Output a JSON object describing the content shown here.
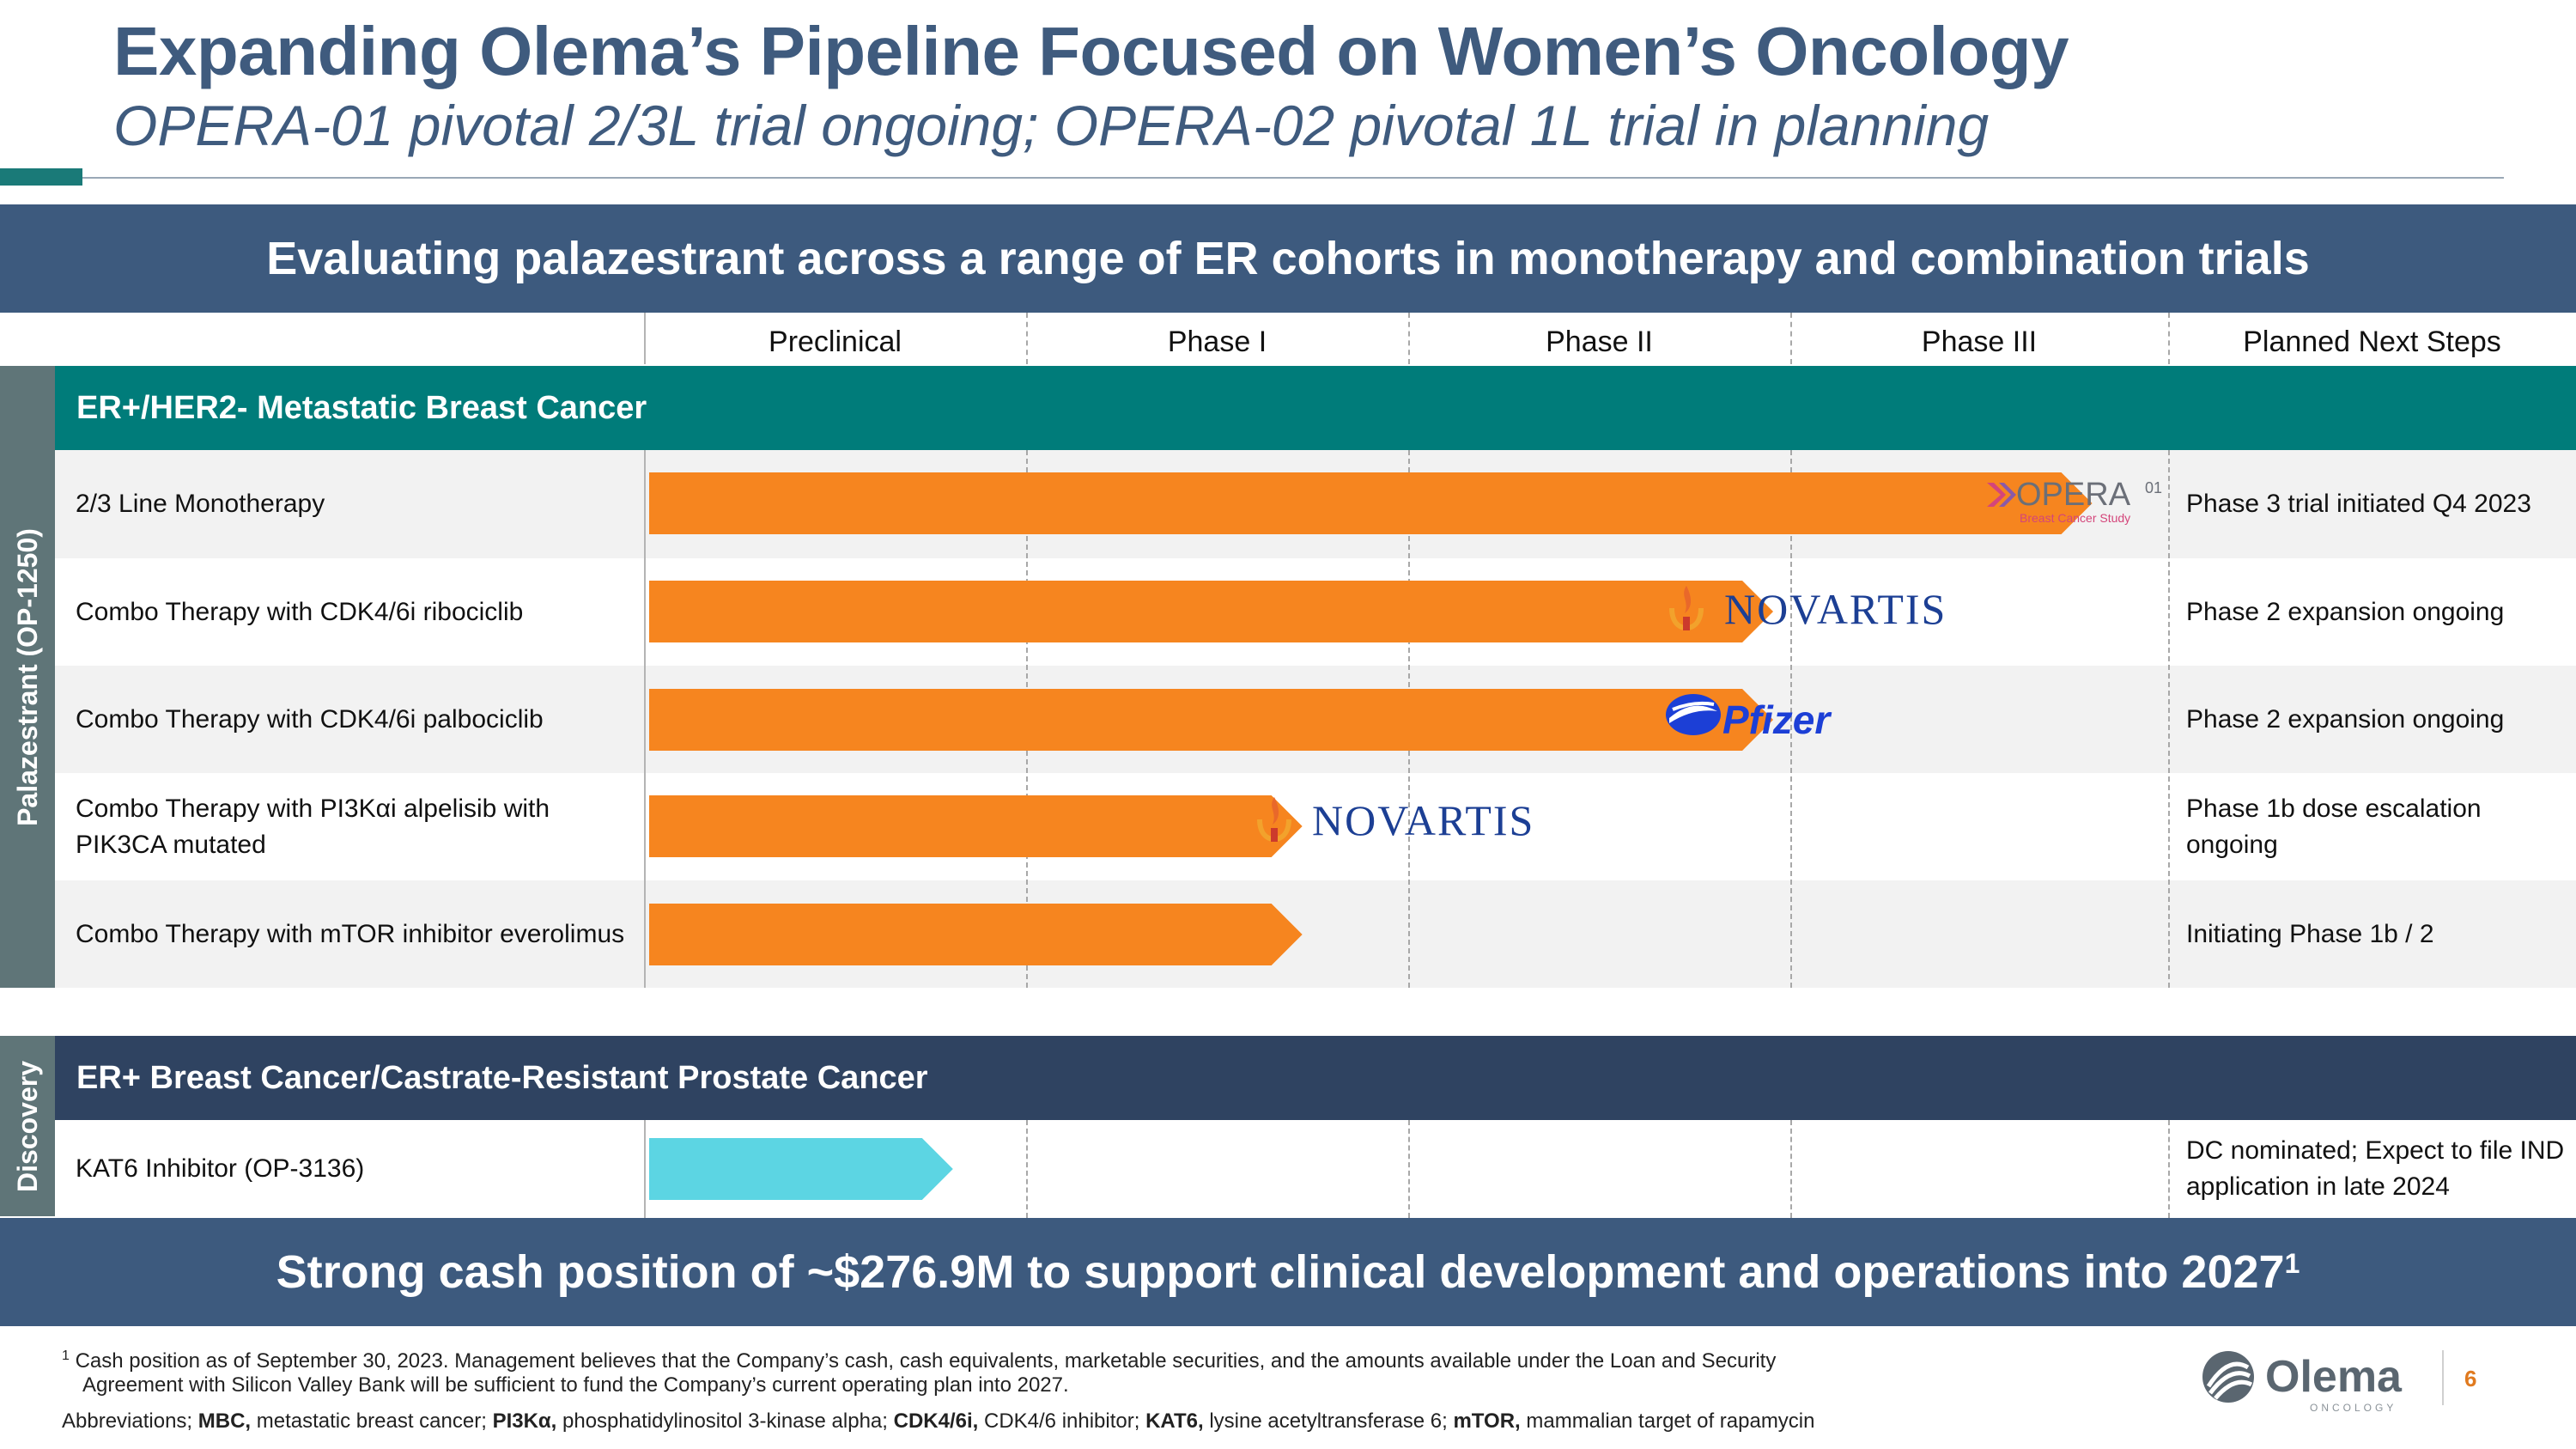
{
  "header": {
    "title": "Expanding Olema’s Pipeline Focused on Women’s Oncology",
    "subtitle": "OPERA-01 pivotal 2/3L trial ongoing; OPERA-02 pivotal 1L trial in planning"
  },
  "top_banner": "Evaluating palazestrant across a range of ER cohorts in monotherapy and combination trials",
  "columns": [
    "Preclinical",
    "Phase I",
    "Phase II",
    "Phase III",
    "Planned Next Steps"
  ],
  "side_labels": {
    "palazestrant": "Palazestrant (OP-1250)",
    "discovery": "Discovery"
  },
  "sections": {
    "er_her2": "ER+/HER2- Metastatic Breast Cancer",
    "er_prostate": "ER+ Breast Cancer/Castrate-Resistant Prostate Cancer"
  },
  "programs": [
    {
      "label": "2/3 Line Monotherapy",
      "next_step": "Phase 3 trial initiated Q4 2023",
      "stage_progress": 0.95,
      "partner": "OPERA-01"
    },
    {
      "label": "Combo Therapy with CDK4/6i ribociclib",
      "next_step": "Phase 2 expansion ongoing",
      "stage_progress": 0.74,
      "partner": "NOVARTIS"
    },
    {
      "label": "Combo Therapy with CDK4/6i palbociclib",
      "next_step": "Phase 2 expansion ongoing",
      "stage_progress": 0.74,
      "partner": "Pfizer"
    },
    {
      "label": "Combo Therapy with PI3Kαi alpelisib with PIK3CA mutated",
      "next_step": "Phase 1b dose escalation ongoing",
      "stage_progress": 0.43,
      "partner": "NOVARTIS"
    },
    {
      "label": "Combo Therapy with mTOR inhibitor everolimus",
      "next_step": "Initiating Phase 1b / 2",
      "stage_progress": 0.43,
      "partner": ""
    },
    {
      "label": "KAT6 Inhibitor (OP-3136)",
      "next_step": "DC nominated; Expect to file IND application in late 2024",
      "stage_progress": 0.2,
      "partner": ""
    }
  ],
  "opera_logo": {
    "name": "OPERA",
    "suffix": "01",
    "tagline": "Breast Cancer Study"
  },
  "bottom_banner": {
    "text": "Strong cash position of ~$276.9M to support clinical development and operations into 2027",
    "sup": "1"
  },
  "footnotes": {
    "note_mark": "1",
    "note_line1": "Cash position as of September 30, 2023. Management believes that the Company’s cash, cash equivalents, marketable securities, and the amounts available under the Loan and Security",
    "note_line2": "Agreement with Silicon Valley Bank will be sufficient to fund the Company’s current operating plan into 2027.",
    "abbr_prefix": "Abbreviations;",
    "abbr": [
      {
        "term": "MBC,",
        "def": "metastatic breast cancer;"
      },
      {
        "term": "PI3Kα,",
        "def": "phosphatidylinositol 3-kinase alpha;"
      },
      {
        "term": "CDK4/6i,",
        "def": "CDK4/6 inhibitor;"
      },
      {
        "term": "KAT6,",
        "def": "lysine acetyltransferase 6;"
      },
      {
        "term": "mTOR,",
        "def": " mammalian target of rapamycin"
      }
    ]
  },
  "brand": {
    "name": "Olema",
    "sub": "ONCOLOGY",
    "page": "6"
  },
  "colors": {
    "navy": "#3d5a7e",
    "teal": "#007c7a",
    "orange": "#f6851f",
    "cyan": "#5cd5e3",
    "dark_navy": "#2f4361"
  }
}
